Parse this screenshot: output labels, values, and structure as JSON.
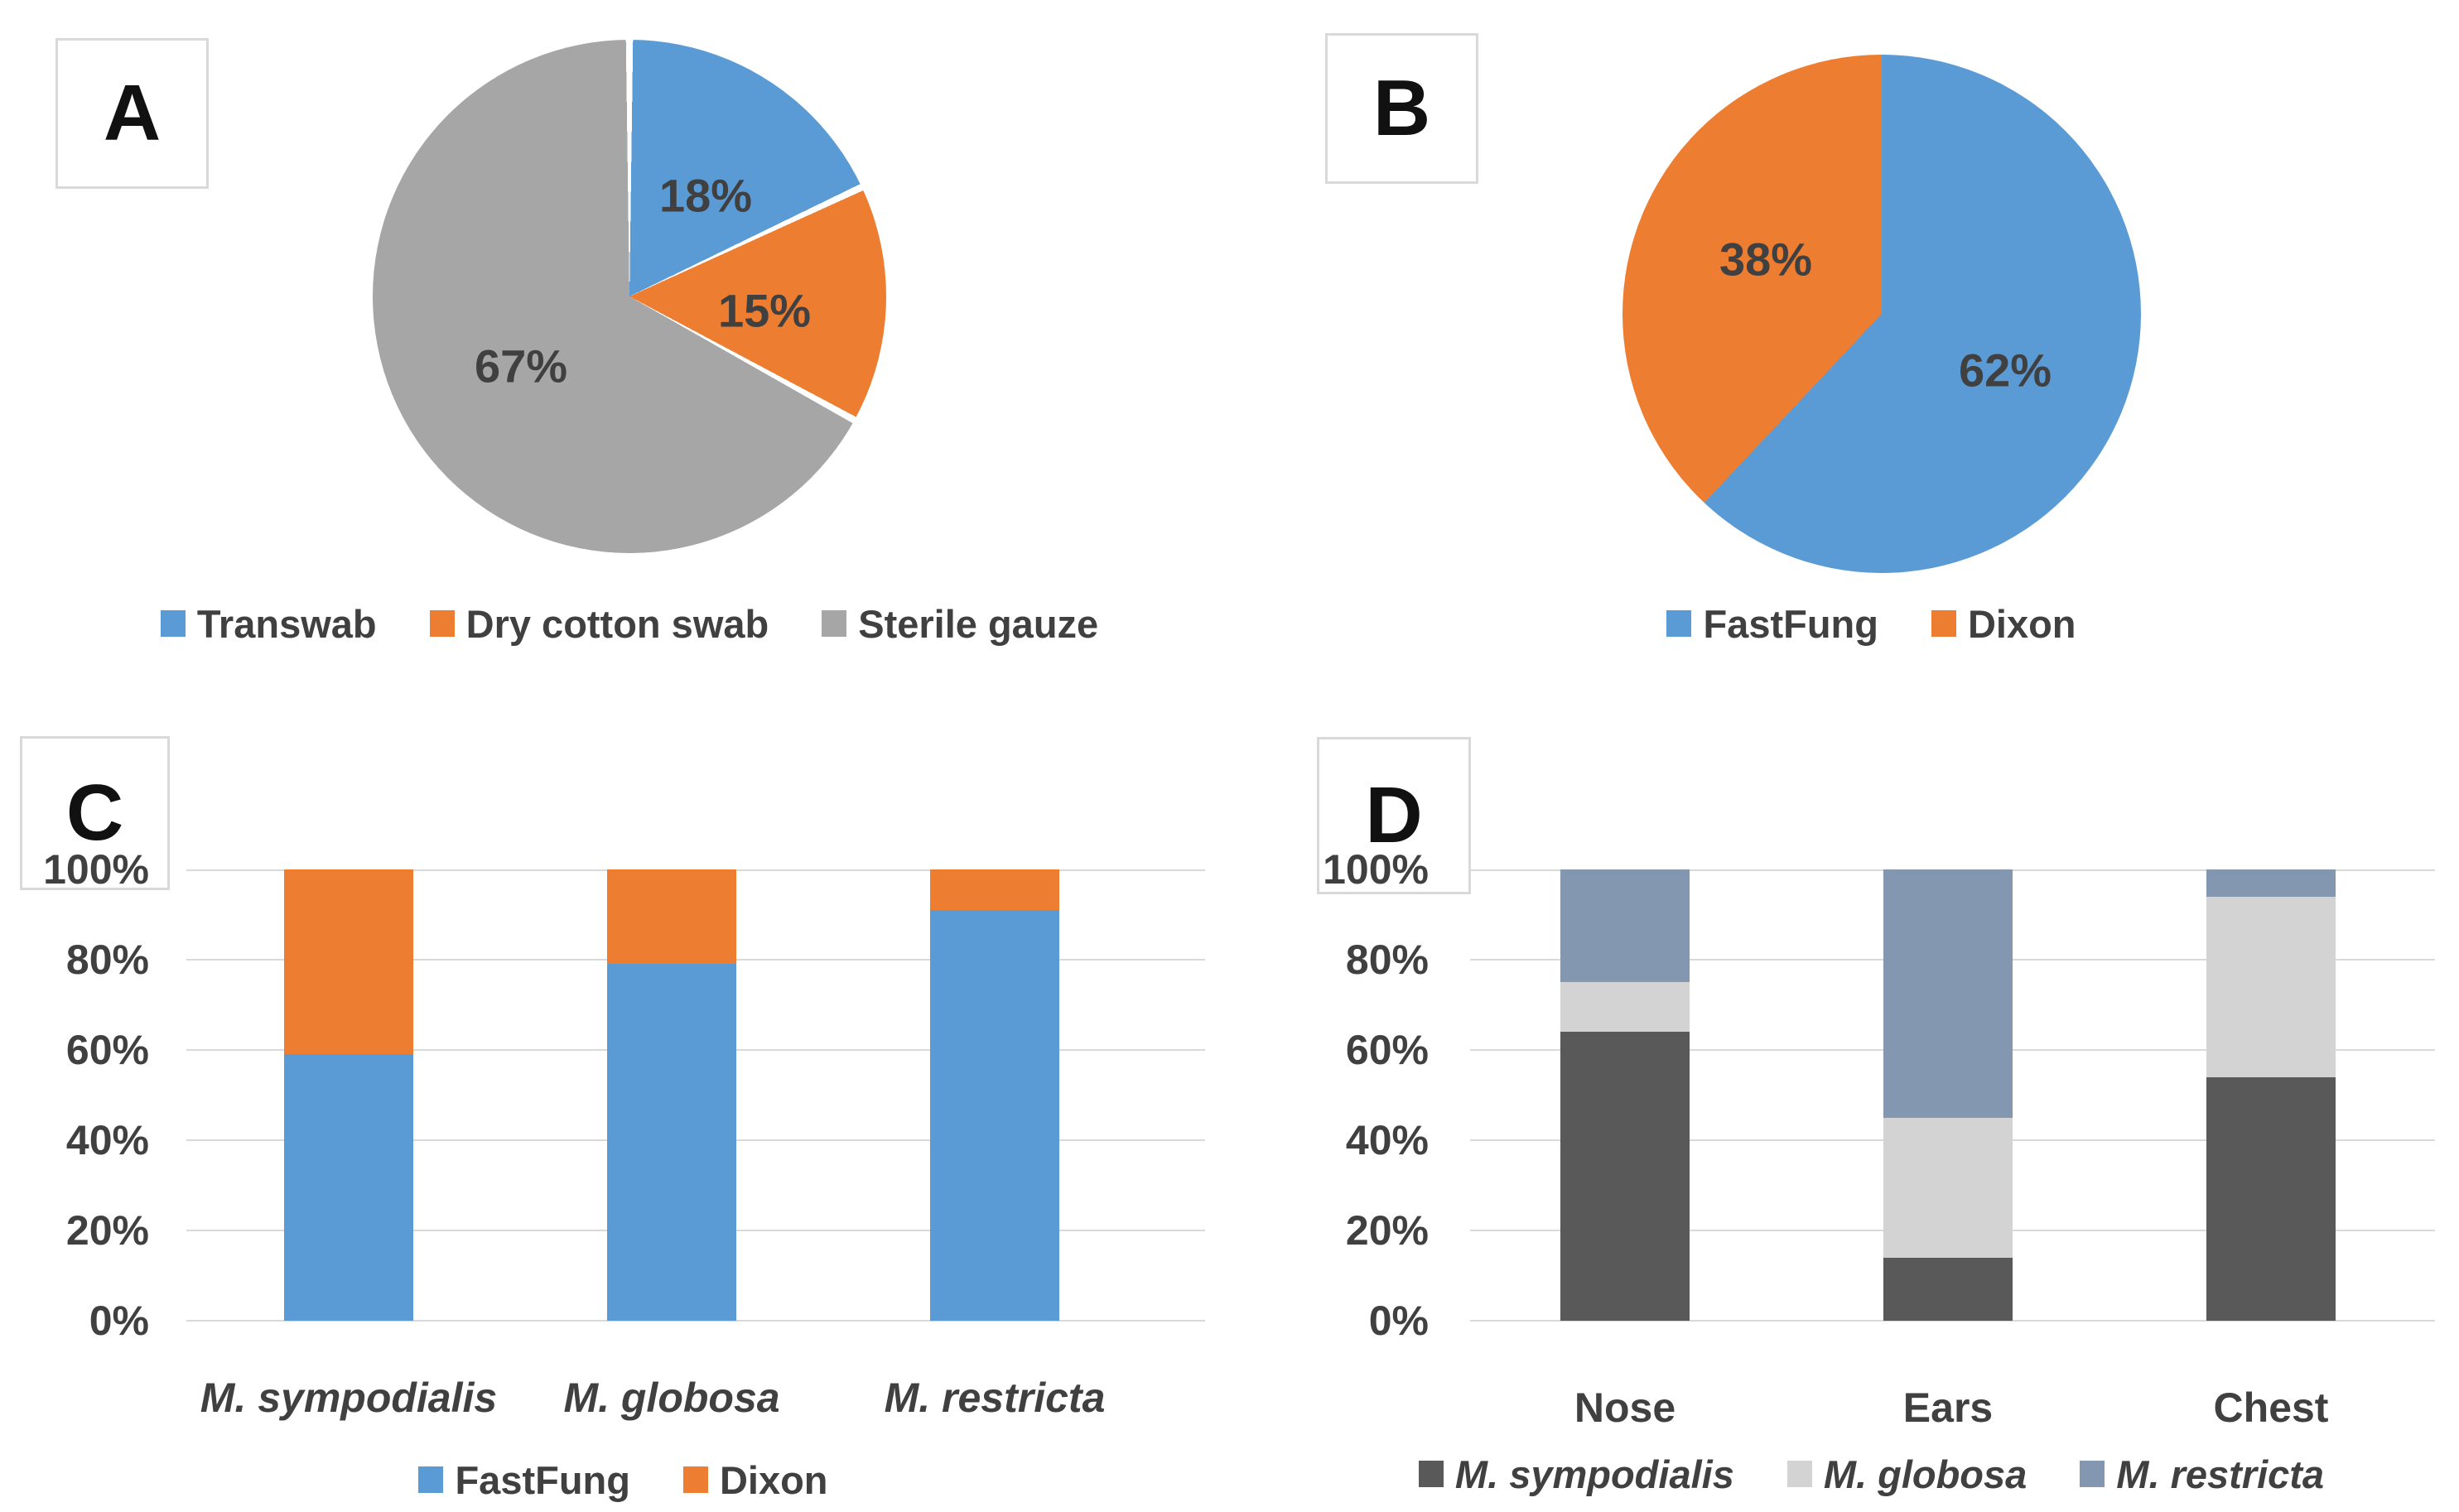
{
  "panels": {
    "a": {
      "letter": "A"
    },
    "b": {
      "letter": "B"
    },
    "c": {
      "letter": "C"
    },
    "d": {
      "letter": "D"
    }
  },
  "text_color": "#404040",
  "grid_color": "#d9d9d9",
  "chart_data": [
    {
      "panel": "A",
      "type": "pie",
      "title": "",
      "slices": [
        {
          "label": "Transwab",
          "value": 18,
          "color": "#5b9bd5",
          "data_label": "18%"
        },
        {
          "label": "Dry cotton swab",
          "value": 15,
          "color": "#ed7d31",
          "data_label": "15%"
        },
        {
          "label": "Sterile gauze",
          "value": 67,
          "color": "#a6a6a6",
          "data_label": "67%"
        }
      ],
      "start_angle_deg": 0,
      "white_slice_separators": true,
      "legend_position": "bottom",
      "legend_italic": false
    },
    {
      "panel": "B",
      "type": "pie",
      "title": "",
      "slices": [
        {
          "label": "FastFung",
          "value": 62,
          "color": "#5b9bd5",
          "data_label": "62%"
        },
        {
          "label": "Dixon",
          "value": 38,
          "color": "#ed7d31",
          "data_label": "38%"
        }
      ],
      "start_angle_deg": 0,
      "white_slice_separators": false,
      "legend_position": "bottom",
      "legend_italic": false
    },
    {
      "panel": "C",
      "type": "bar",
      "subtype": "stacked-100",
      "title": "",
      "xlabel": "",
      "ylabel": "",
      "categories": [
        "M. sympodialis",
        "M. globosa",
        "M. restricta"
      ],
      "categories_italic": true,
      "series": [
        {
          "name": "FastFung",
          "color": "#5b9bd5",
          "values": [
            59,
            79,
            91
          ]
        },
        {
          "name": "Dixon",
          "color": "#ed7d31",
          "values": [
            41,
            21,
            9
          ]
        }
      ],
      "ylim": [
        0,
        100
      ],
      "y_ticks": [
        "0%",
        "20%",
        "40%",
        "60%",
        "80%",
        "100%"
      ],
      "grid": true,
      "legend_position": "bottom",
      "legend_italic": false
    },
    {
      "panel": "D",
      "type": "bar",
      "subtype": "stacked-100",
      "title": "",
      "xlabel": "",
      "ylabel": "",
      "categories": [
        "Nose",
        "Ears",
        "Chest"
      ],
      "categories_italic": false,
      "series": [
        {
          "name": "M. sympodialis",
          "color": "#595959",
          "values": [
            64,
            14,
            54
          ]
        },
        {
          "name": "M. globosa",
          "color": "#d3d3d3",
          "values": [
            11,
            31,
            40
          ]
        },
        {
          "name": "M. restricta",
          "color": "#8497b0",
          "values": [
            25,
            55,
            6
          ]
        }
      ],
      "ylim": [
        0,
        100
      ],
      "y_ticks": [
        "0%",
        "20%",
        "40%",
        "60%",
        "80%",
        "100%"
      ],
      "grid": true,
      "legend_position": "bottom",
      "legend_italic": true
    }
  ]
}
